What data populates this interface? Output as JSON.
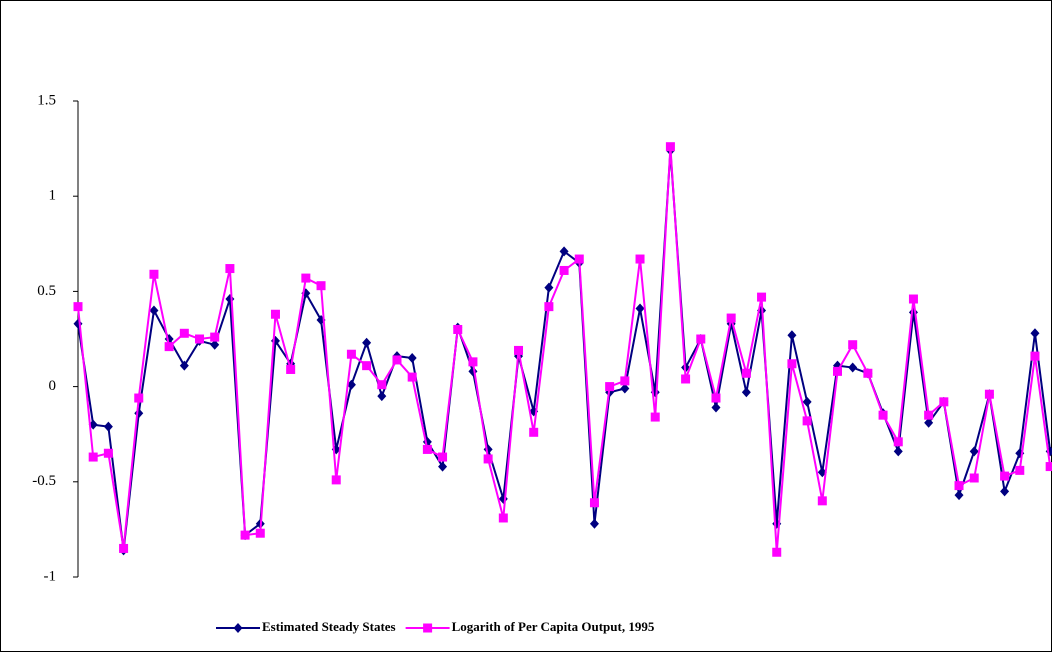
{
  "chart_data": {
    "type": "line",
    "categories": [
      null,
      null,
      null,
      null,
      null,
      null,
      null,
      null,
      null,
      null,
      null,
      null,
      null,
      null,
      null,
      null,
      null,
      null,
      null,
      null,
      null,
      null,
      null,
      null,
      null,
      null,
      null,
      null,
      null,
      null,
      null,
      null,
      null,
      null,
      null,
      null,
      null,
      null,
      null,
      null,
      null,
      null,
      null,
      null,
      null,
      null,
      null,
      null,
      null,
      null,
      null,
      null,
      null,
      null,
      null,
      null,
      null,
      null,
      null,
      null,
      null,
      null,
      null,
      null,
      null
    ],
    "series": [
      {
        "name": "Estimated Steady States",
        "color": "#000080",
        "marker": "diamond",
        "values": [
          0.33,
          -0.2,
          -0.21,
          -0.86,
          -0.14,
          0.4,
          0.25,
          0.11,
          0.24,
          0.22,
          0.46,
          -0.78,
          -0.72,
          0.24,
          0.12,
          0.49,
          0.35,
          -0.33,
          0.01,
          0.23,
          -0.05,
          0.16,
          0.15,
          -0.29,
          -0.42,
          0.31,
          0.08,
          -0.33,
          -0.59,
          0.16,
          -0.13,
          0.52,
          0.71,
          0.65,
          -0.72,
          -0.03,
          -0.01,
          0.41,
          -0.03,
          1.24,
          0.1,
          0.25,
          -0.11,
          0.33,
          -0.03,
          0.4,
          -0.72,
          0.27,
          -0.08,
          -0.45,
          0.11,
          0.1,
          0.07,
          -0.14,
          -0.34,
          0.39,
          -0.19,
          -0.08,
          -0.57,
          -0.34,
          -0.04,
          -0.55,
          -0.35,
          0.28,
          -0.34
        ]
      },
      {
        "name": "Logarith of Per Capita Output, 1995",
        "color": "#ff00ff",
        "marker": "square",
        "values": [
          0.42,
          -0.37,
          -0.35,
          -0.85,
          -0.06,
          0.59,
          0.21,
          0.28,
          0.25,
          0.26,
          0.62,
          -0.78,
          -0.77,
          0.38,
          0.09,
          0.57,
          0.53,
          -0.49,
          0.17,
          0.11,
          0.01,
          0.14,
          0.05,
          -0.33,
          -0.37,
          0.3,
          0.13,
          -0.38,
          -0.69,
          0.19,
          -0.24,
          0.42,
          0.61,
          0.67,
          -0.61,
          0.0,
          0.03,
          0.67,
          -0.16,
          1.26,
          0.04,
          0.25,
          -0.06,
          0.36,
          0.07,
          0.47,
          -0.87,
          0.12,
          -0.18,
          -0.6,
          0.08,
          0.22,
          0.07,
          -0.15,
          -0.29,
          0.46,
          -0.15,
          -0.08,
          -0.52,
          -0.48,
          -0.04,
          -0.47,
          -0.44,
          0.16,
          -0.42
        ]
      }
    ],
    "ylim": [
      -1,
      1.5
    ],
    "yticks": [
      1.5,
      1,
      0.5,
      0,
      -0.5,
      -1
    ],
    "grid": false,
    "legend": "bottom"
  }
}
